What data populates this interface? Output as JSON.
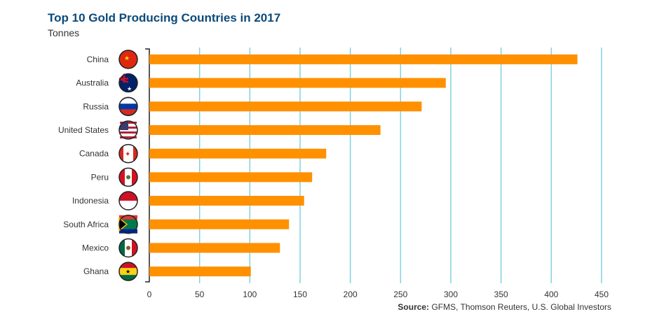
{
  "chart_data": {
    "type": "bar",
    "orientation": "horizontal",
    "title": "Top 10 Gold Producing Countries in 2017",
    "ylabel": "Tonnes",
    "categories": [
      "China",
      "Australia",
      "Russia",
      "United States",
      "Canada",
      "Peru",
      "Indonesia",
      "South Africa",
      "Mexico",
      "Ghana"
    ],
    "values": [
      426,
      295,
      271,
      230,
      176,
      162,
      154,
      139,
      130,
      101
    ],
    "xlim": [
      0,
      450
    ],
    "xticks": [
      "0",
      "50",
      "100",
      "150",
      "200",
      "250",
      "300",
      "350",
      "400",
      "450"
    ],
    "grid": true,
    "bar_color": "#ff9000",
    "grid_color": "#7fd3e0",
    "source_label": "Source:",
    "source": "GFMS, Thomson Reuters, U.S. Global Investors",
    "flag_icons": [
      "china-flag",
      "australia-flag",
      "russia-flag",
      "usa-flag",
      "canada-flag",
      "peru-flag",
      "indonesia-flag",
      "south-africa-flag",
      "mexico-flag",
      "ghana-flag"
    ]
  }
}
